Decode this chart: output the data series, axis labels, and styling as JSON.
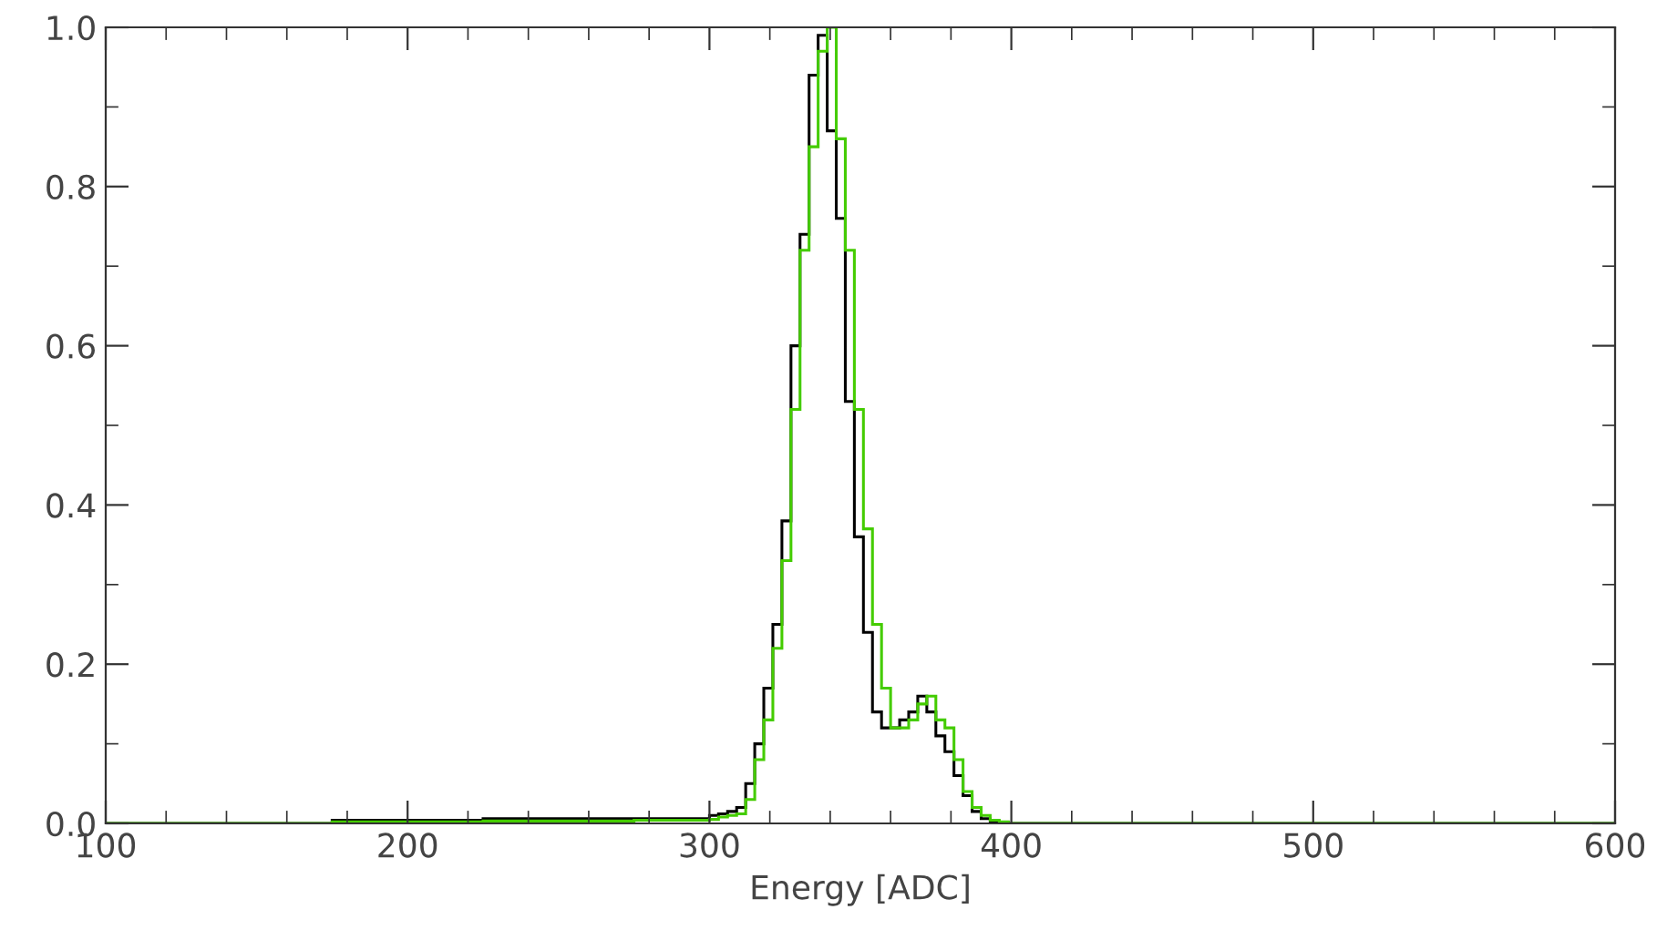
{
  "chart_data": {
    "type": "histogram",
    "xlabel": "Energy [ADC]",
    "bins": [
      100,
      175,
      225,
      275,
      300,
      303,
      306,
      309,
      312,
      315,
      318,
      321,
      324,
      327,
      330,
      333,
      336,
      339,
      342,
      345,
      348,
      351,
      354,
      357,
      360,
      363,
      366,
      369,
      372,
      375,
      378,
      381,
      384,
      387,
      390,
      393,
      396,
      399,
      600
    ],
    "series": [
      {
        "color": "#000000",
        "values": [
          0,
          0.004,
          0.006,
          0.006,
          0.01,
          0.012,
          0.015,
          0.02,
          0.05,
          0.1,
          0.17,
          0.25,
          0.38,
          0.6,
          0.74,
          0.94,
          0.99,
          0.87,
          0.76,
          0.53,
          0.36,
          0.24,
          0.14,
          0.12,
          0.12,
          0.13,
          0.14,
          0.16,
          0.14,
          0.11,
          0.09,
          0.06,
          0.035,
          0.015,
          0.006,
          0.002,
          0.001,
          0
        ]
      },
      {
        "color": "#44cc00",
        "values": [
          0,
          0.002,
          0.003,
          0.004,
          0.005,
          0.008,
          0.01,
          0.012,
          0.03,
          0.08,
          0.13,
          0.22,
          0.33,
          0.52,
          0.72,
          0.85,
          0.97,
          1.0,
          0.86,
          0.72,
          0.52,
          0.37,
          0.25,
          0.17,
          0.12,
          0.12,
          0.13,
          0.15,
          0.16,
          0.13,
          0.12,
          0.08,
          0.04,
          0.02,
          0.01,
          0.004,
          0.002,
          0
        ]
      }
    ],
    "xlim": [
      100,
      600
    ],
    "ylim": [
      0,
      1.0
    ],
    "xticks": [
      100,
      {
        "value": 120,
        "label": null
      },
      {
        "value": 140,
        "label": null
      },
      {
        "value": 160,
        "label": null
      },
      {
        "value": 180,
        "label": null
      },
      200,
      {
        "value": 220,
        "label": null
      },
      {
        "value": 240,
        "label": null
      },
      {
        "value": 260,
        "label": null
      },
      {
        "value": 280,
        "label": null
      },
      300,
      {
        "value": 320,
        "label": null
      },
      {
        "value": 340,
        "label": null
      },
      {
        "value": 360,
        "label": null
      },
      {
        "value": 380,
        "label": null
      },
      400,
      {
        "value": 420,
        "label": null
      },
      {
        "value": 440,
        "label": null
      },
      {
        "value": 460,
        "label": null
      },
      {
        "value": 480,
        "label": null
      },
      500,
      {
        "value": 520,
        "label": null
      },
      {
        "value": 540,
        "label": null
      },
      {
        "value": 560,
        "label": null
      },
      {
        "value": 580,
        "label": null
      },
      600
    ],
    "yticks": [
      {
        "value": 0,
        "label": "0.0"
      },
      {
        "value": 0.1,
        "label": null
      },
      0.2,
      {
        "value": 0.3,
        "label": null
      },
      0.4,
      {
        "value": 0.5,
        "label": null
      },
      0.6,
      {
        "value": 0.7,
        "label": null
      },
      0.8,
      {
        "value": 0.9,
        "label": null
      },
      {
        "value": 1.0,
        "label": "1.0"
      }
    ],
    "grid": false
  }
}
